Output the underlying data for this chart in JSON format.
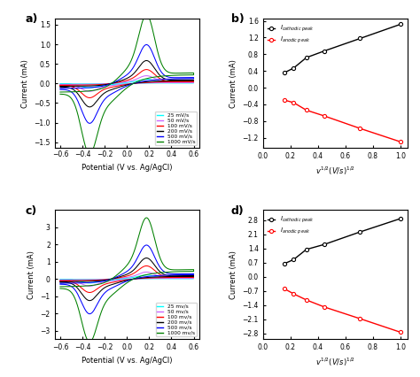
{
  "cv_colors": [
    "cyan",
    "#cc66ff",
    "red",
    "black",
    "blue",
    "green"
  ],
  "cv_labels_a": [
    "25 mV/s",
    "50 mV/s",
    "100 mV/s",
    "200 mV/s",
    "500 mV/s",
    "1000 mV/s"
  ],
  "cv_labels_c": [
    "25 mv/s",
    "50 mv/s",
    "100 mv/s",
    "200 mv/s",
    "500 mv/s",
    "1000 mv/s"
  ],
  "panel_a": {
    "xlabel": "Potential (V vs. Ag/AgCl)",
    "ylabel": "Current (mA)",
    "xlim": [
      -0.65,
      0.65
    ],
    "ylim": [
      -1.65,
      1.65
    ],
    "yticks": [
      -1.5,
      -1.0,
      -0.5,
      0.0,
      0.5,
      1.0,
      1.5
    ],
    "xticks": [
      -0.6,
      -0.4,
      -0.2,
      0.0,
      0.2,
      0.4,
      0.6
    ],
    "amplitudes": [
      0.085,
      0.155,
      0.28,
      0.46,
      0.78,
      1.38
    ]
  },
  "panel_b": {
    "ylabel": "Current (mA)",
    "xlim": [
      0.0,
      1.05
    ],
    "ylim": [
      -1.45,
      1.65
    ],
    "yticks": [
      -1.2,
      -0.8,
      -0.4,
      0.0,
      0.4,
      0.8,
      1.2,
      1.6
    ],
    "xticks": [
      0.0,
      0.2,
      0.4,
      0.6,
      0.8,
      1.0
    ],
    "cathodic_x": [
      0.158,
      0.224,
      0.316,
      0.447,
      0.707,
      1.0
    ],
    "cathodic_y": [
      0.36,
      0.47,
      0.72,
      0.88,
      1.18,
      1.52
    ],
    "anodic_x": [
      0.158,
      0.224,
      0.316,
      0.447,
      0.707,
      1.0
    ],
    "anodic_y": [
      -0.3,
      -0.36,
      -0.54,
      -0.68,
      -0.98,
      -1.3
    ]
  },
  "panel_c": {
    "xlabel": "Potential (V vs. Ag/AgCl)",
    "ylabel": "Current (mA)",
    "xlim": [
      -0.65,
      0.65
    ],
    "ylim": [
      -3.5,
      4.0
    ],
    "yticks": [
      -3,
      -2,
      -1,
      0,
      1,
      2,
      3
    ],
    "xticks": [
      -0.6,
      -0.4,
      -0.2,
      0.0,
      0.2,
      0.4,
      0.6
    ],
    "amplitudes": [
      0.18,
      0.32,
      0.6,
      0.96,
      1.55,
      2.8
    ]
  },
  "panel_d": {
    "ylabel": "Current (mA)",
    "xlim": [
      0.0,
      1.05
    ],
    "ylim": [
      -3.1,
      3.3
    ],
    "yticks": [
      -2.8,
      -2.1,
      -1.4,
      -0.7,
      0.0,
      0.7,
      1.4,
      2.1,
      2.8
    ],
    "xticks": [
      0.0,
      0.2,
      0.4,
      0.6,
      0.8,
      1.0
    ],
    "cathodic_x": [
      0.158,
      0.224,
      0.316,
      0.447,
      0.707,
      1.0
    ],
    "cathodic_y": [
      0.65,
      0.85,
      1.35,
      1.6,
      2.22,
      2.88
    ],
    "anodic_x": [
      0.158,
      0.224,
      0.316,
      0.447,
      0.707,
      1.0
    ],
    "anodic_y": [
      -0.6,
      -0.85,
      -1.15,
      -1.5,
      -2.08,
      -2.75
    ]
  }
}
